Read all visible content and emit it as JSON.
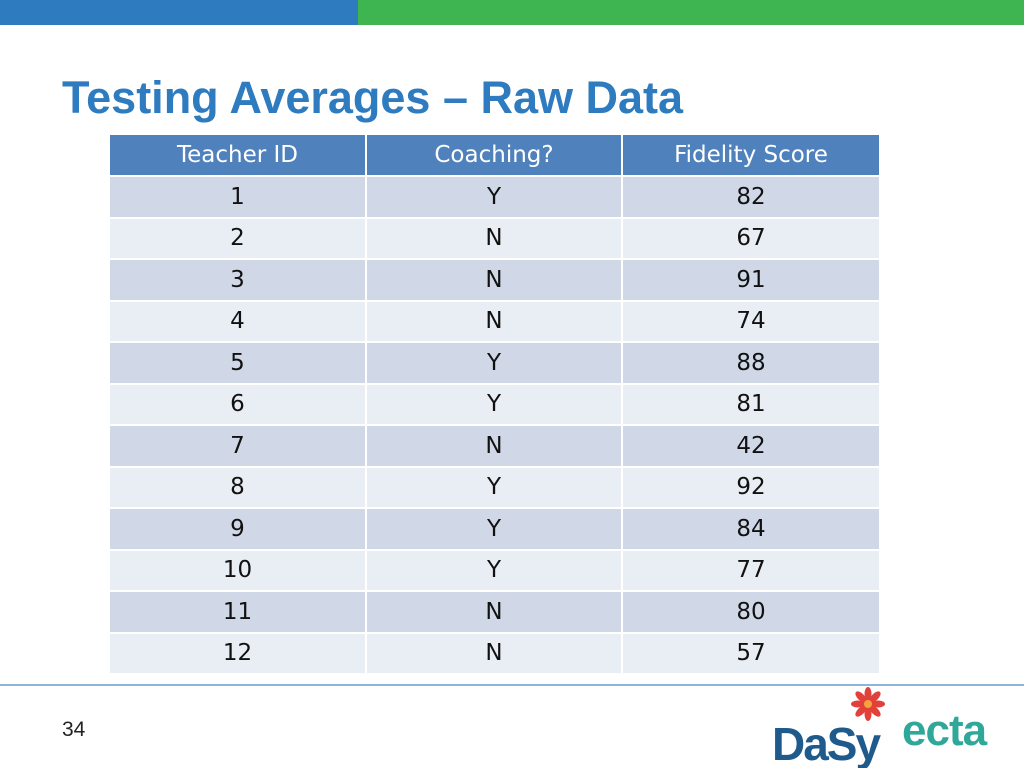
{
  "slide": {
    "title": "Testing Averages – Raw Data",
    "page_number": "34",
    "colors": {
      "top_bar_blue": "#2e7bbf",
      "top_bar_green": "#3fb551",
      "title": "#2e7bbf",
      "table_header": "#4f81bd",
      "row_odd": "#d0d8e8",
      "row_even": "#e9edf4"
    }
  },
  "table": {
    "headers": [
      "Teacher ID",
      "Coaching?",
      "Fidelity Score"
    ],
    "rows": [
      [
        "1",
        "Y",
        "82"
      ],
      [
        "2",
        "N",
        "67"
      ],
      [
        "3",
        "N",
        "91"
      ],
      [
        "4",
        "N",
        "74"
      ],
      [
        "5",
        "Y",
        "88"
      ],
      [
        "6",
        "Y",
        "81"
      ],
      [
        "7",
        "N",
        "42"
      ],
      [
        "8",
        "Y",
        "92"
      ],
      [
        "9",
        "Y",
        "84"
      ],
      [
        "10",
        "Y",
        "77"
      ],
      [
        "11",
        "N",
        "80"
      ],
      [
        "12",
        "N",
        "57"
      ]
    ]
  },
  "logos": {
    "dasy_text": "DaSy",
    "ecta_text": "ecta"
  }
}
